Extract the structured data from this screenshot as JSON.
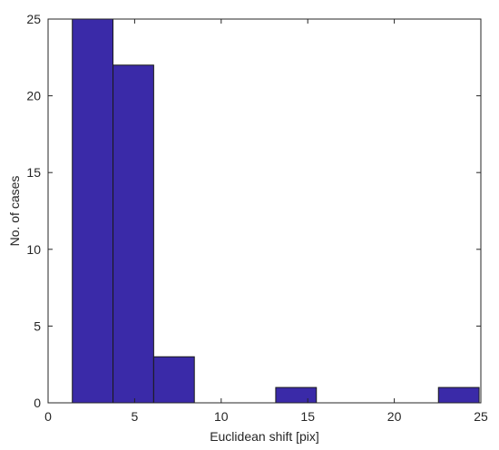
{
  "chart_data": {
    "type": "bar",
    "subtype": "histogram",
    "title": "",
    "xlabel": "Euclidean shift [pix]",
    "ylabel": "No. of cases",
    "xlim": [
      0,
      25
    ],
    "ylim": [
      0,
      25
    ],
    "xticks": [
      0,
      5,
      10,
      15,
      20,
      25
    ],
    "yticks": [
      0,
      5,
      10,
      15,
      20,
      25
    ],
    "grid": false,
    "legend": "none",
    "bar_color": "#3a2aa8",
    "bins": [
      {
        "x0": 1.4,
        "x1": 3.75,
        "count": 25
      },
      {
        "x0": 3.75,
        "x1": 6.1,
        "count": 22
      },
      {
        "x0": 6.1,
        "x1": 8.45,
        "count": 3
      },
      {
        "x0": 8.45,
        "x1": 10.8,
        "count": 0
      },
      {
        "x0": 10.8,
        "x1": 13.15,
        "count": 0
      },
      {
        "x0": 13.15,
        "x1": 15.5,
        "count": 1
      },
      {
        "x0": 15.5,
        "x1": 17.85,
        "count": 0
      },
      {
        "x0": 17.85,
        "x1": 20.2,
        "count": 0
      },
      {
        "x0": 20.2,
        "x1": 22.55,
        "count": 0
      },
      {
        "x0": 22.55,
        "x1": 24.9,
        "count": 1
      }
    ]
  }
}
